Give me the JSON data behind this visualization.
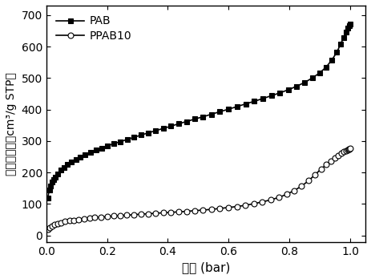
{
  "title": "",
  "xlabel": "压力 (bar)",
  "ylabel": "氮气吸附量（cm³/g STP）",
  "xlim": [
    0,
    1.05
  ],
  "ylim": [
    -20,
    730
  ],
  "xticks": [
    0.0,
    0.2,
    0.4,
    0.6,
    0.8,
    1.0
  ],
  "yticks": [
    0,
    100,
    200,
    300,
    400,
    500,
    600,
    700
  ],
  "PAB_x": [
    0.005,
    0.01,
    0.015,
    0.02,
    0.025,
    0.03,
    0.038,
    0.048,
    0.058,
    0.07,
    0.083,
    0.097,
    0.112,
    0.128,
    0.145,
    0.163,
    0.182,
    0.202,
    0.223,
    0.244,
    0.266,
    0.289,
    0.312,
    0.336,
    0.36,
    0.385,
    0.41,
    0.436,
    0.462,
    0.489,
    0.516,
    0.543,
    0.571,
    0.599,
    0.627,
    0.656,
    0.684,
    0.713,
    0.741,
    0.769,
    0.797,
    0.824,
    0.85,
    0.875,
    0.899,
    0.921,
    0.94,
    0.956,
    0.968,
    0.978,
    0.986,
    0.992,
    0.996,
    0.999
  ],
  "PAB_y": [
    120,
    145,
    158,
    169,
    178,
    186,
    196,
    207,
    216,
    225,
    233,
    241,
    249,
    257,
    264,
    271,
    278,
    285,
    292,
    298,
    305,
    312,
    319,
    326,
    333,
    340,
    347,
    355,
    362,
    370,
    377,
    385,
    393,
    401,
    409,
    418,
    426,
    435,
    444,
    453,
    463,
    474,
    486,
    500,
    516,
    535,
    558,
    582,
    607,
    628,
    645,
    658,
    666,
    672
  ],
  "PPAB10_x": [
    0.005,
    0.01,
    0.018,
    0.027,
    0.037,
    0.049,
    0.062,
    0.076,
    0.091,
    0.107,
    0.124,
    0.142,
    0.16,
    0.18,
    0.2,
    0.221,
    0.243,
    0.265,
    0.288,
    0.311,
    0.335,
    0.36,
    0.385,
    0.41,
    0.436,
    0.462,
    0.489,
    0.516,
    0.543,
    0.571,
    0.599,
    0.627,
    0.655,
    0.683,
    0.711,
    0.738,
    0.765,
    0.791,
    0.816,
    0.84,
    0.863,
    0.884,
    0.904,
    0.921,
    0.936,
    0.95,
    0.961,
    0.971,
    0.979,
    0.986,
    0.991,
    0.995,
    0.998,
    1.0
  ],
  "PPAB10_y": [
    20,
    25,
    30,
    35,
    38,
    41,
    44,
    47,
    49,
    51,
    53,
    55,
    57,
    58,
    60,
    62,
    63,
    65,
    66,
    68,
    69,
    71,
    72,
    74,
    75,
    77,
    79,
    81,
    83,
    86,
    89,
    92,
    96,
    101,
    107,
    113,
    121,
    131,
    143,
    157,
    174,
    193,
    211,
    225,
    237,
    247,
    255,
    261,
    266,
    270,
    272,
    274,
    275,
    276
  ],
  "PAB_color": "#000000",
  "PPAB10_color": "#000000",
  "background_color": "#ffffff",
  "legend_PAB": "PAB",
  "legend_PPAB10": "PPAB10"
}
